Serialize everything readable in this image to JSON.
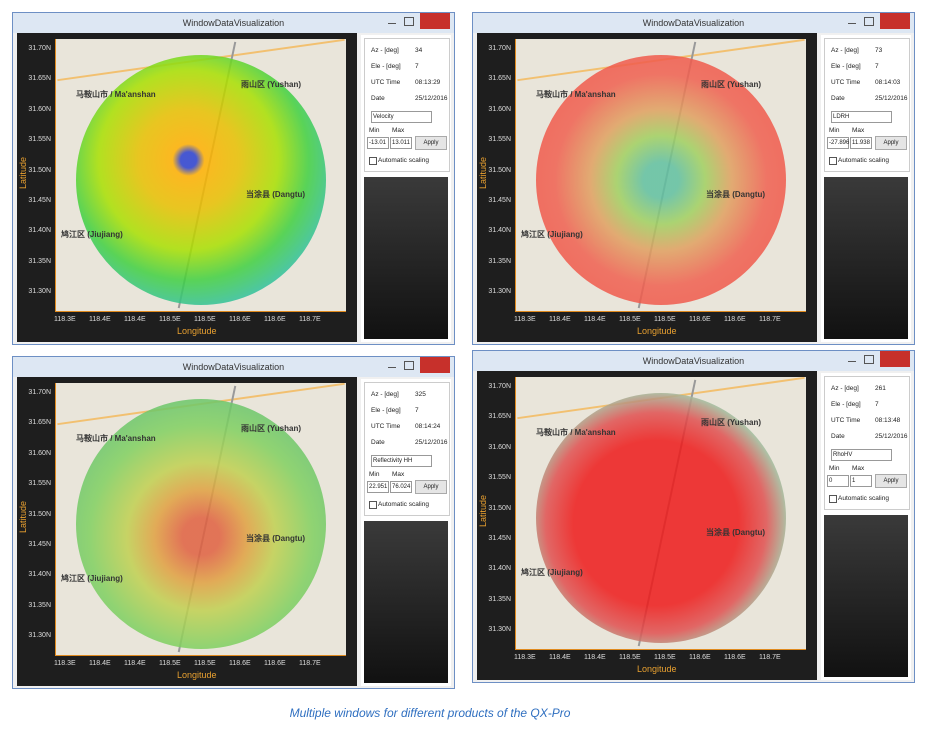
{
  "window_title": "WindowDataVisualization",
  "labels": {
    "az": "Az - [deg]",
    "ele": "Ele - [deg]",
    "utc": "UTC Time",
    "date": "Date",
    "min": "Min",
    "max": "Max",
    "apply": "Apply",
    "auto_scaling": "Automatic scaling",
    "latitude": "Latitude",
    "longitude": "Longitude"
  },
  "lat_ticks": [
    "31.70N",
    "31.65N",
    "31.60N",
    "31.55N",
    "31.50N",
    "31.45N",
    "31.40N",
    "31.35N",
    "31.30N"
  ],
  "lon_ticks": [
    "118.3E",
    "118.4E",
    "118.4E",
    "118.5E",
    "118.5E",
    "118.6E",
    "118.6E",
    "118.7E"
  ],
  "map_labels": [
    "马鞍山市 / Ma'anshan",
    "雨山区 (Yushan)",
    "当涂县 (Dangtu)",
    "鸠江区 (Jiujiang)"
  ],
  "windows": [
    {
      "az": "34",
      "ele": "7",
      "utc": "08:13:29",
      "date": "25/12/2016",
      "product": "Velocity",
      "min": "-13.01",
      "max": "13.011"
    },
    {
      "az": "73",
      "ele": "7",
      "utc": "08:14:03",
      "date": "25/12/2016",
      "product": "LDRH",
      "min": "-27.896",
      "max": "11.938"
    },
    {
      "az": "325",
      "ele": "7",
      "utc": "08:14:24",
      "date": "25/12/2016",
      "product": "Reflectivity HH",
      "min": "22.951",
      "max": "76.024"
    },
    {
      "az": "261",
      "ele": "7",
      "utc": "08:13:48",
      "date": "25/12/2016",
      "product": "RhoHV",
      "min": "0",
      "max": "1"
    }
  ],
  "caption": "Multiple windows for different products of the QX-Pro"
}
